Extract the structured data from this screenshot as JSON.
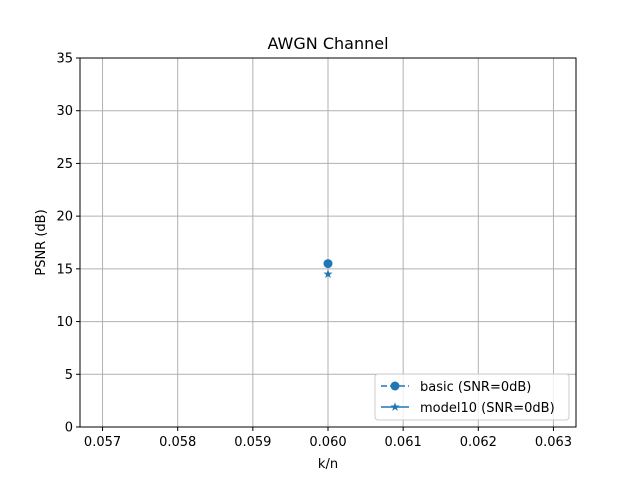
{
  "chart_data": {
    "type": "line",
    "title": "AWGN Channel",
    "xlabel": "k/n",
    "ylabel": "PSNR (dB)",
    "xlim": [
      0.0567,
      0.0633
    ],
    "ylim": [
      0,
      35
    ],
    "xticks": [
      0.057,
      0.058,
      0.059,
      0.06,
      0.061,
      0.062,
      0.063
    ],
    "xtick_labels": [
      "0.057",
      "0.058",
      "0.059",
      "0.060",
      "0.061",
      "0.062",
      "0.063"
    ],
    "yticks": [
      0,
      5,
      10,
      15,
      20,
      25,
      30,
      35
    ],
    "ytick_labels": [
      "0",
      "5",
      "10",
      "15",
      "20",
      "25",
      "30",
      "35"
    ],
    "grid": true,
    "legend_position": "bottom-right",
    "series": [
      {
        "name": "basic (SNR=0dB)",
        "x": [
          0.06
        ],
        "y": [
          15.5
        ],
        "marker": "circle",
        "linestyle": "dashed",
        "color": "#1f77b4"
      },
      {
        "name": "model10 (SNR=0dB)",
        "x": [
          0.06
        ],
        "y": [
          14.5
        ],
        "marker": "star",
        "linestyle": "solid",
        "color": "#1f77b4"
      }
    ]
  }
}
